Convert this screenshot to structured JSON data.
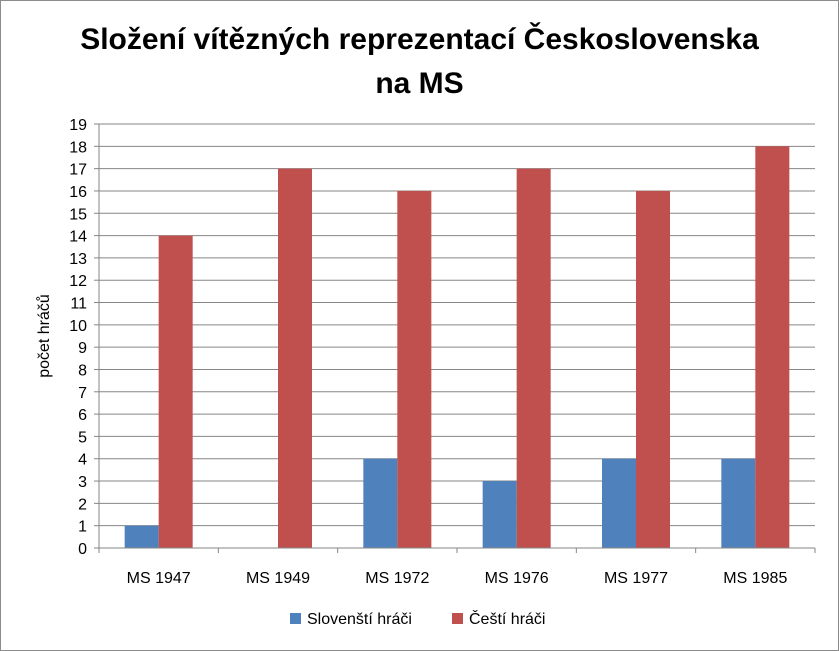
{
  "chart_data": {
    "type": "bar",
    "title_line1": "Složení vítězných reprezentací Československa",
    "title_line2": "na MS",
    "xlabel": "",
    "ylabel": "počet hráčů",
    "ylim": [
      0,
      19
    ],
    "yticks": [
      0,
      1,
      2,
      3,
      4,
      5,
      6,
      7,
      8,
      9,
      10,
      11,
      12,
      13,
      14,
      15,
      16,
      17,
      18,
      19
    ],
    "grid": true,
    "legend_position": "bottom",
    "categories": [
      "MS 1947",
      "MS 1949",
      "MS 1972",
      "MS 1976",
      "MS 1977",
      "MS 1985"
    ],
    "series": [
      {
        "name": "Slovenští hráči",
        "color": "#4f81bd",
        "values": [
          1,
          0,
          4,
          3,
          4,
          4
        ]
      },
      {
        "name": "Čeští hráči",
        "color": "#c0504d",
        "values": [
          14,
          17,
          16,
          17,
          16,
          18
        ]
      }
    ]
  }
}
